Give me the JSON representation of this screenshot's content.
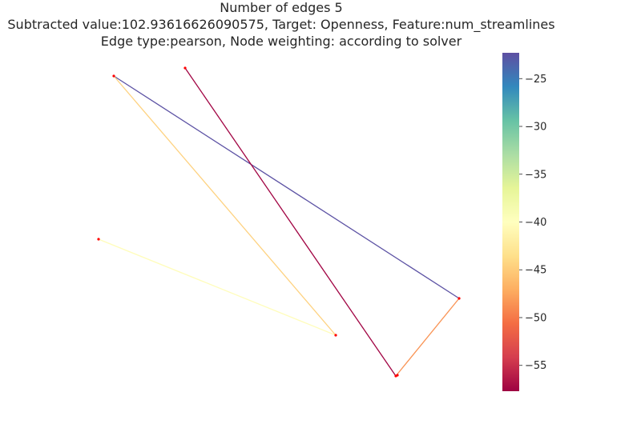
{
  "title_lines": [
    "Number of edges 5",
    "Subtracted value:102.93616626090575, Target: Openness, Feature:num_streamlines",
    "Edge type:pearson, Node weighting: according to solver"
  ],
  "colorbar": {
    "colormap": "Spectral",
    "range": [
      -57.7,
      -22.3
    ],
    "ticks": [
      -25,
      -30,
      -35,
      -40,
      -45,
      -50,
      -55
    ],
    "tick_labels": [
      "−25",
      "−30",
      "−35",
      "−40",
      "−45",
      "−50",
      "−55"
    ]
  },
  "graph": {
    "node_color": "#ff0000",
    "nodes": [
      {
        "id": "n1"
      },
      {
        "id": "n2"
      },
      {
        "id": "n3"
      },
      {
        "id": "n4"
      },
      {
        "id": "n5"
      },
      {
        "id": "n6"
      },
      {
        "id": "n7"
      }
    ],
    "edges": [
      {
        "source": "n1",
        "target": "n5",
        "weight": -22.5
      },
      {
        "source": "n1",
        "target": "n4",
        "weight": -44.5
      },
      {
        "source": "n2",
        "target": "n6",
        "weight": -57.5
      },
      {
        "source": "n3",
        "target": "n4",
        "weight": -40.2
      },
      {
        "source": "n6",
        "target": "n5",
        "weight": -48.5
      }
    ]
  }
}
